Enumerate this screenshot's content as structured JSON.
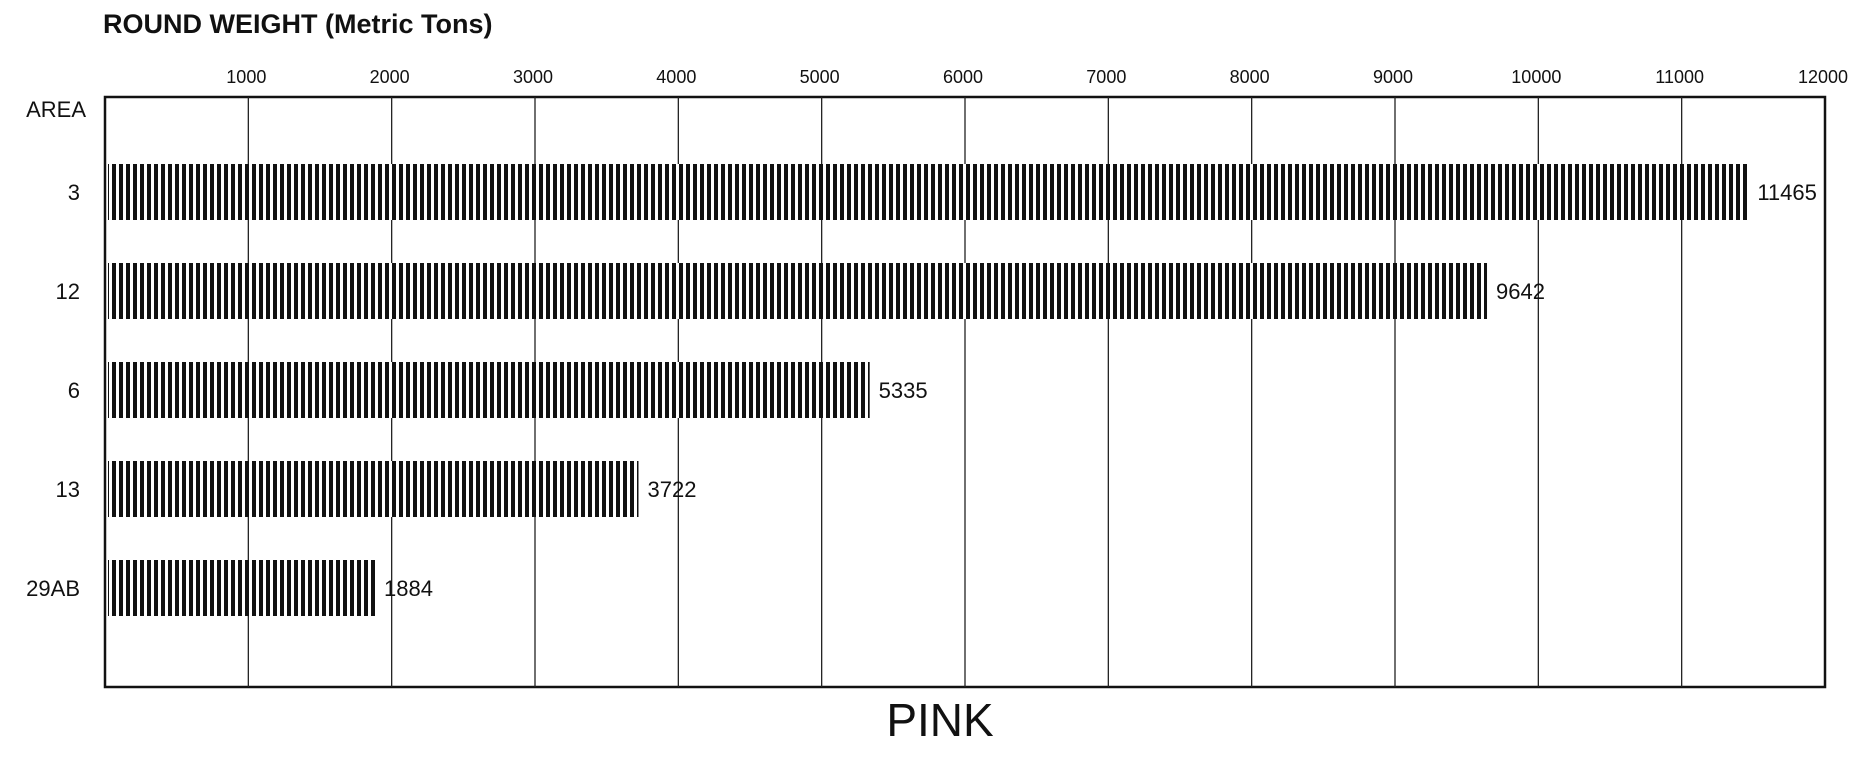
{
  "chart_data": {
    "type": "bar",
    "orientation": "horizontal",
    "title": "ROUND WEIGHT (Metric Tons)",
    "category_axis_label": "AREA",
    "categories": [
      "3",
      "12",
      "6",
      "13",
      "29AB"
    ],
    "values": [
      11465,
      9642,
      5335,
      3722,
      1884
    ],
    "value_labels": [
      "11465",
      "9642",
      "5335",
      "3722",
      "1884"
    ],
    "x_ticks": [
      1000,
      2000,
      3000,
      4000,
      5000,
      6000,
      7000,
      8000,
      9000,
      10000,
      11000,
      12000
    ],
    "x_tick_labels": [
      "1000",
      "2000",
      "3000",
      "4000",
      "5000",
      "6000",
      "7000",
      "8000",
      "9000",
      "10000",
      "11000",
      "12000"
    ],
    "xlim": [
      0,
      12000
    ],
    "grid": true,
    "bar_fill": "vertical-hatch",
    "bar_color": "#111111",
    "footer": "PINK"
  }
}
